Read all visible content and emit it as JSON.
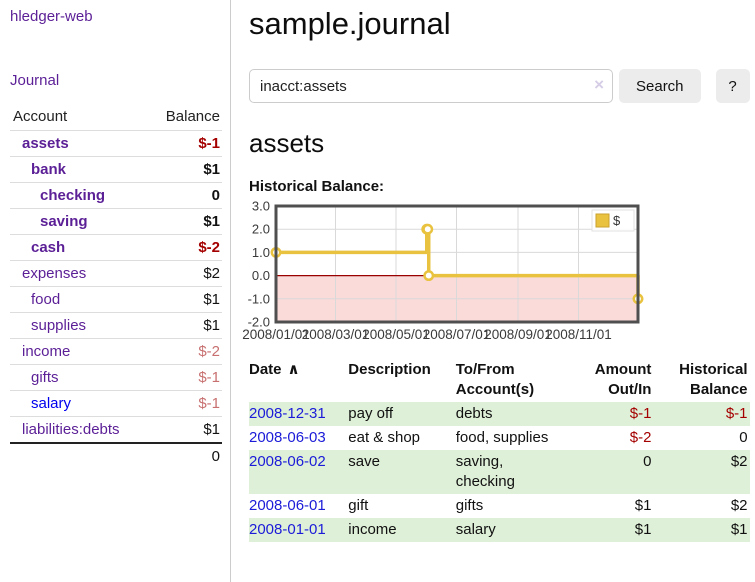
{
  "app": {
    "title": "hledger-web"
  },
  "sidebar": {
    "journal_link": "Journal",
    "accounts": {
      "col_account": "Account",
      "col_balance": "Balance",
      "rows": [
        {
          "name": "assets",
          "balance": "$-1",
          "depth": 1,
          "current": true
        },
        {
          "name": "bank",
          "balance": "$1",
          "depth": 2,
          "current": true
        },
        {
          "name": "checking",
          "balance": "0",
          "depth": 3,
          "current": true
        },
        {
          "name": "saving",
          "balance": "$1",
          "depth": 3,
          "current": true
        },
        {
          "name": "cash",
          "balance": "$-2",
          "depth": 2,
          "current": true
        },
        {
          "name": "expenses",
          "balance": "$2",
          "depth": 1,
          "current": false
        },
        {
          "name": "food",
          "balance": "$1",
          "depth": 2,
          "current": false
        },
        {
          "name": "supplies",
          "balance": "$1",
          "depth": 2,
          "current": false
        },
        {
          "name": "income",
          "balance": "$-2",
          "depth": 1,
          "current": false
        },
        {
          "name": "gifts",
          "balance": "$-1",
          "depth": 2,
          "current": false
        },
        {
          "name": "salary",
          "balance": "$-1",
          "depth": 2,
          "current": false,
          "unvisited": true
        },
        {
          "name": "liabilities:debts",
          "balance": "$1",
          "depth": 1,
          "current": false
        }
      ],
      "total": "0"
    }
  },
  "main": {
    "title": "sample.journal",
    "search": {
      "value": "inacct:assets",
      "clear_glyph": "×",
      "button_label": "Search",
      "help_label": "?"
    },
    "account_heading": "assets",
    "chart_title": "Historical Balance:"
  },
  "chart_data": {
    "type": "line",
    "style": "step",
    "title": "Historical Balance",
    "series": [
      {
        "name": "$",
        "color": "#e9c33f",
        "points": [
          [
            "2008-01-01",
            1.0
          ],
          [
            "2008-06-01",
            2.0
          ],
          [
            "2008-06-02",
            2.0
          ],
          [
            "2008-06-03",
            0.0
          ],
          [
            "2008-12-31",
            -1.0
          ]
        ]
      }
    ],
    "xlim": [
      "2008-01-01",
      "2008-12-31"
    ],
    "ylim": [
      -2.0,
      3.0
    ],
    "yticks": [
      "3.0",
      "2.0",
      "1.0",
      "0.0",
      "-1.0",
      "-2.0"
    ],
    "xticks": [
      "2008/01/01",
      "2008/03/01",
      "2008/05/01",
      "2008/07/01",
      "2008/09/01",
      "2008/11/01"
    ],
    "legend": {
      "label": "$",
      "position": "top-right"
    },
    "grid": true,
    "negative_region_color": "#fbdada",
    "zero_line_color": "#990000",
    "line_color": "#e9c33f"
  },
  "register": {
    "headers": {
      "date": "Date",
      "sort": "∧",
      "description": "Description",
      "accounts_1": "To/From",
      "accounts_2": "Account(s)",
      "amount_1": "Amount",
      "amount_2": "Out/In",
      "balance_1": "Historical",
      "balance_2": "Balance"
    },
    "rows": [
      {
        "date": "2008-12-31",
        "description": "pay off",
        "accounts": "debts",
        "amount": "$-1",
        "balance": "$-1"
      },
      {
        "date": "2008-06-03",
        "description": "eat & shop",
        "accounts": "food, supplies",
        "amount": "$-2",
        "balance": "0"
      },
      {
        "date": "2008-06-02",
        "description": "save",
        "accounts": "saving, checking",
        "amount": "0",
        "balance": "$2"
      },
      {
        "date": "2008-06-01",
        "description": "gift",
        "accounts": "gifts",
        "amount": "$1",
        "balance": "$2"
      },
      {
        "date": "2008-01-01",
        "description": "income",
        "accounts": "salary",
        "amount": "$1",
        "balance": "$1"
      }
    ]
  },
  "colors": {
    "link_purple": "#5b1f96",
    "link_blue": "#0000ee",
    "date_link_blue": "#1b1bd8",
    "negative_strong": "#a40000",
    "negative_muted": "#c87070",
    "row_stripe_green": "#dff0d8",
    "chart_line_gold": "#e9c33f"
  }
}
